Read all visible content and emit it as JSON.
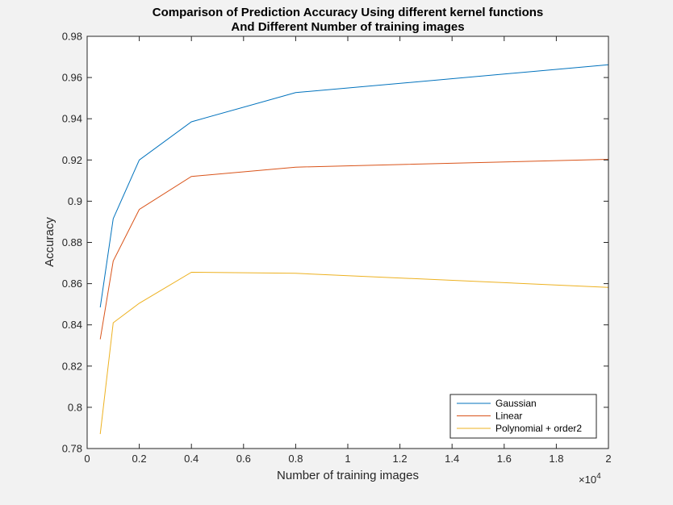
{
  "chart_data": {
    "type": "line",
    "title": [
      "Comparison of Prediction Accuracy Using different kernel functions",
      "And Different Number of training images"
    ],
    "xlabel": "Number of training images",
    "ylabel": "Accuracy",
    "xlim": [
      0,
      2
    ],
    "ylim": [
      0.78,
      0.98
    ],
    "x_multiplier_base": "×10",
    "x_multiplier_exp": "4",
    "xticks": [
      0,
      0.2,
      0.4,
      0.6,
      0.8,
      1,
      1.2,
      1.4,
      1.6,
      1.8,
      2
    ],
    "xtick_labels": [
      "0",
      "0.2",
      "0.4",
      "0.6",
      "0.8",
      "1",
      "1.2",
      "1.4",
      "1.6",
      "1.8",
      "2"
    ],
    "yticks": [
      0.78,
      0.8,
      0.82,
      0.84,
      0.86,
      0.88,
      0.9,
      0.92,
      0.94,
      0.96,
      0.98
    ],
    "ytick_labels": [
      "0.78",
      "0.8",
      "0.82",
      "0.84",
      "0.86",
      "0.88",
      "0.9",
      "0.92",
      "0.94",
      "0.96",
      "0.98"
    ],
    "grid": false,
    "legend_position": "bottom-right",
    "x": [
      0.05,
      0.1,
      0.2,
      0.4,
      0.8,
      2
    ],
    "series": [
      {
        "name": "Gaussian",
        "color": "#0072BD",
        "values": [
          0.8485,
          0.8915,
          0.92,
          0.9385,
          0.9527,
          0.9662
        ]
      },
      {
        "name": "Linear",
        "color": "#D95319",
        "values": [
          0.833,
          0.871,
          0.896,
          0.912,
          0.9165,
          0.9203
        ]
      },
      {
        "name": "Polynomial + order2",
        "color": "#EDB120",
        "values": [
          0.787,
          0.841,
          0.8505,
          0.8655,
          0.865,
          0.8582
        ]
      }
    ]
  }
}
